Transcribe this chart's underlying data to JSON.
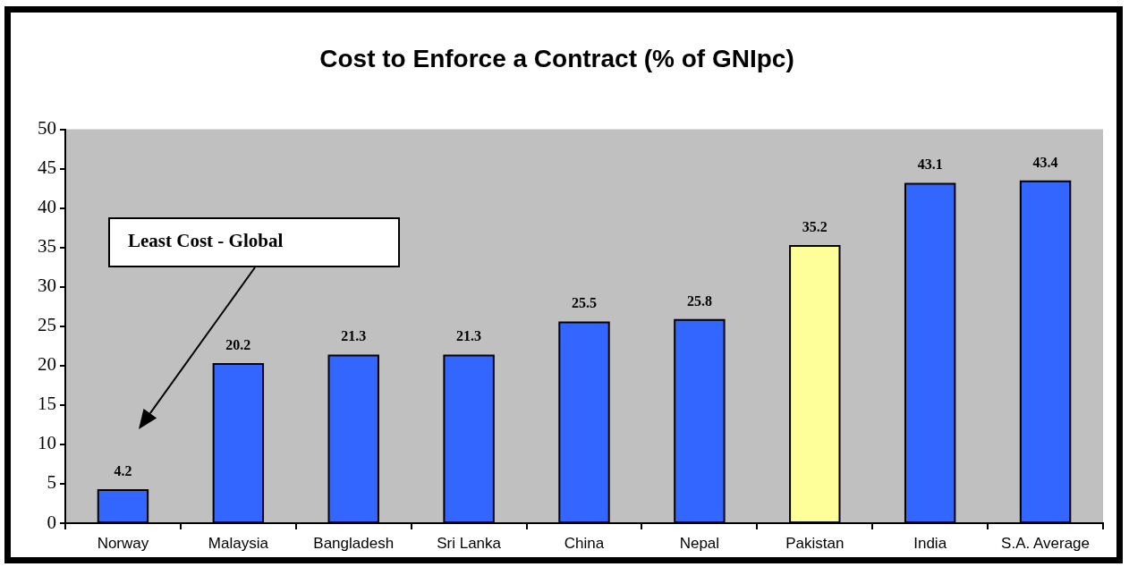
{
  "chart_data": {
    "type": "bar",
    "title": "Cost to Enforce a Contract (% of GNIpc)",
    "categories": [
      "Norway",
      "Malaysia",
      "Bangladesh",
      "Sri Lanka",
      "China",
      "Nepal",
      "Pakistan",
      "India",
      "S.A. Average"
    ],
    "values": [
      4.2,
      20.2,
      21.3,
      21.3,
      25.5,
      25.8,
      35.2,
      43.1,
      43.4
    ],
    "colors": [
      "#3366ff",
      "#3366ff",
      "#3366ff",
      "#3366ff",
      "#3366ff",
      "#3366ff",
      "#ffff99",
      "#3366ff",
      "#3366ff"
    ],
    "ylim": [
      0,
      50
    ],
    "yticks": [
      0,
      5,
      10,
      15,
      20,
      25,
      30,
      35,
      40,
      45,
      50
    ],
    "data_labels": true,
    "annotations": [
      "Least Cost - Global"
    ]
  }
}
